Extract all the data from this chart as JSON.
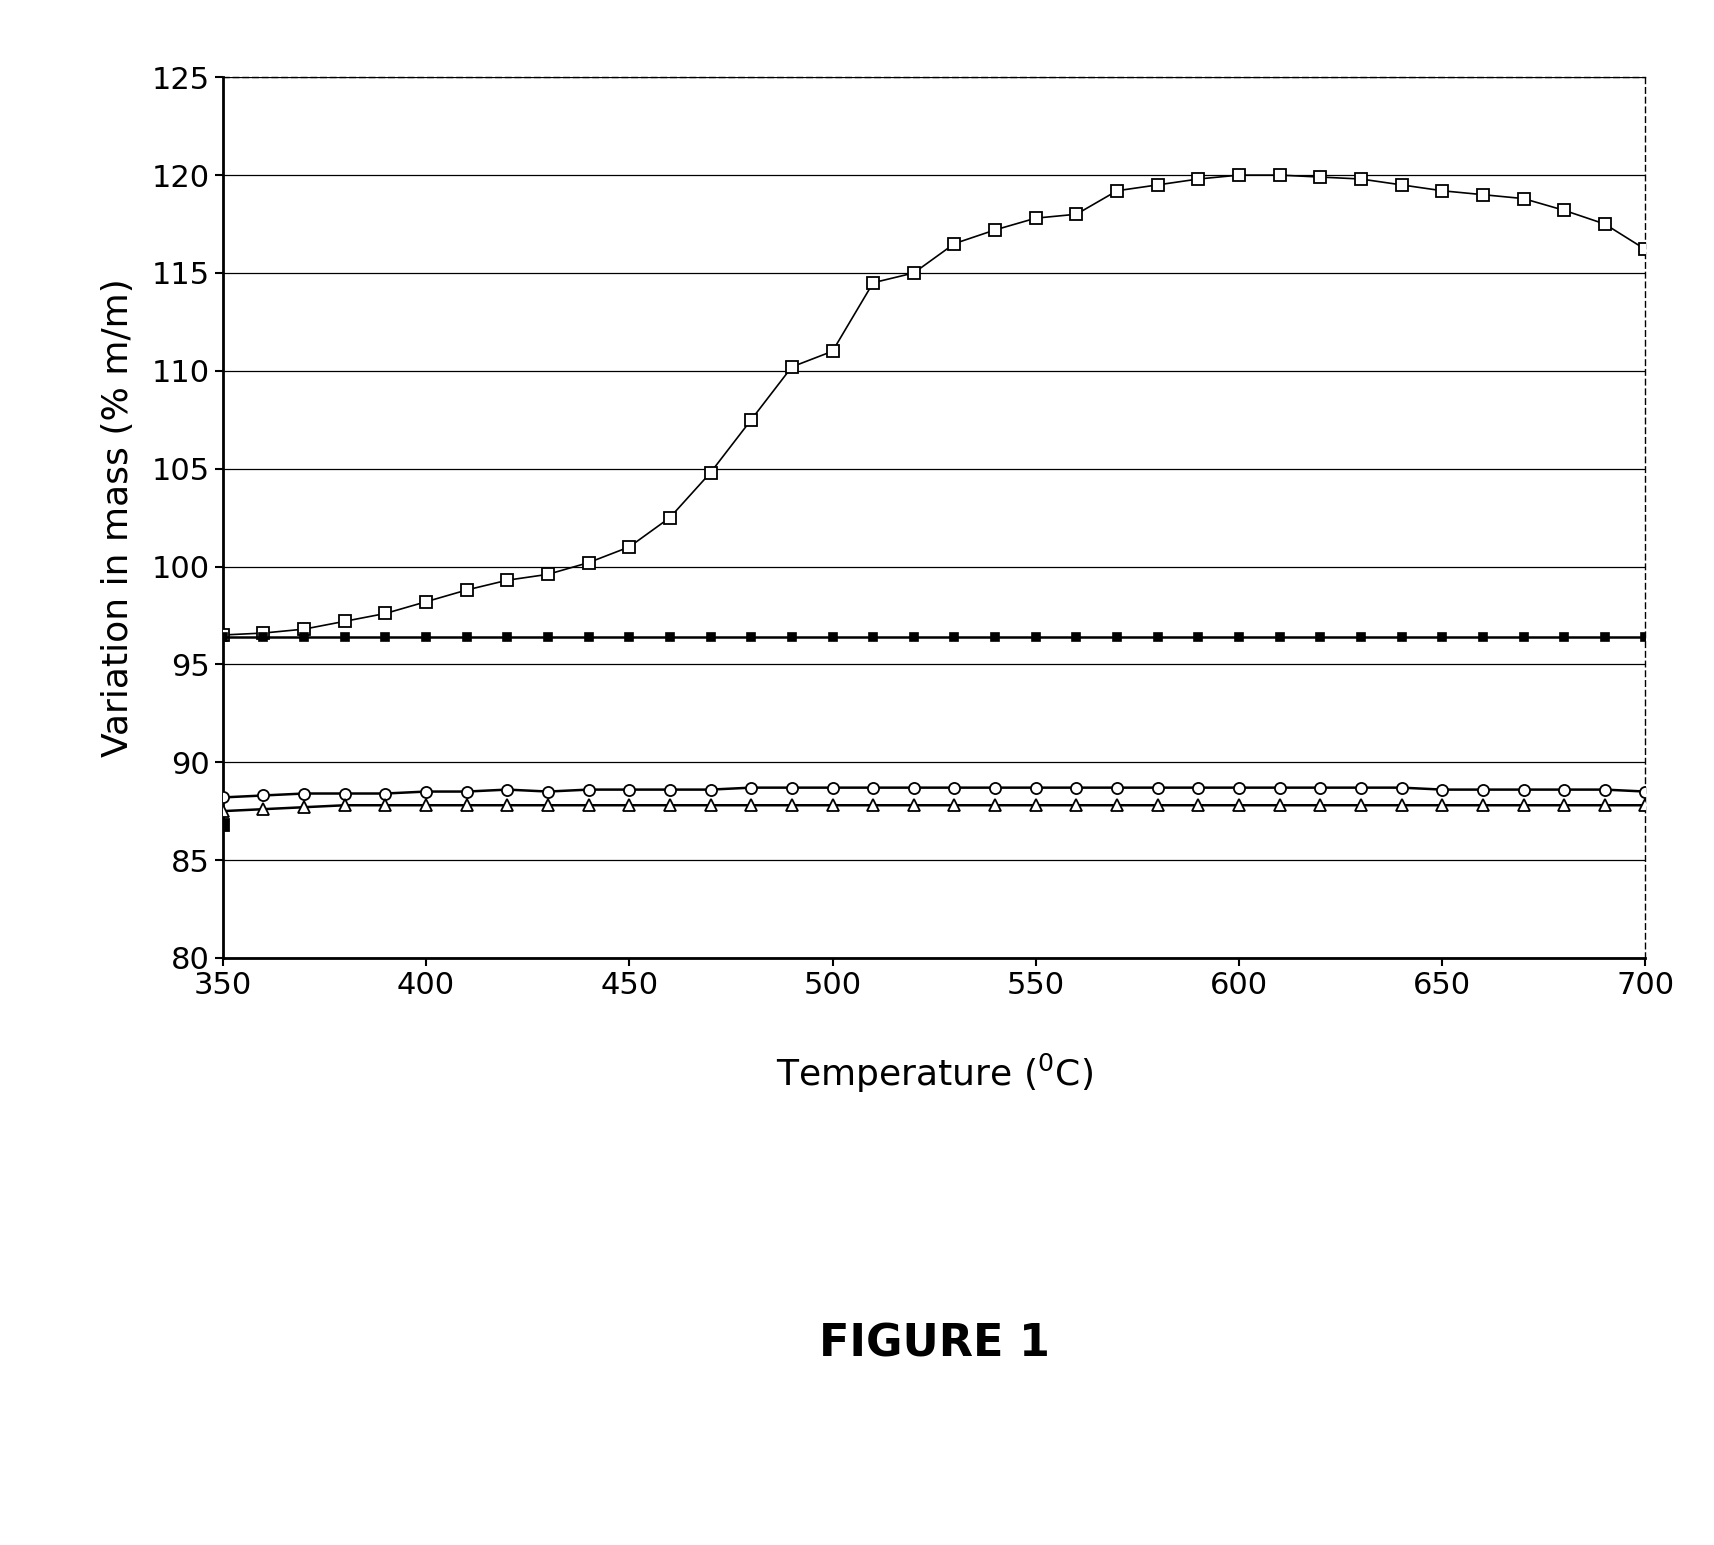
{
  "title": "FIGURE 1",
  "ylabel": "Variation in mass (% m/m)",
  "xlim": [
    350,
    700
  ],
  "ylim": [
    80,
    125
  ],
  "xticks": [
    350,
    400,
    450,
    500,
    550,
    600,
    650,
    700
  ],
  "yticks": [
    80,
    85,
    90,
    95,
    100,
    105,
    110,
    115,
    120,
    125
  ],
  "series_open_square": {
    "x": [
      350,
      360,
      370,
      380,
      390,
      400,
      410,
      420,
      430,
      440,
      450,
      460,
      470,
      480,
      490,
      500,
      510,
      520,
      530,
      540,
      550,
      560,
      570,
      580,
      590,
      600,
      610,
      620,
      630,
      640,
      650,
      660,
      670,
      680,
      690,
      700
    ],
    "y": [
      96.5,
      96.6,
      96.8,
      97.2,
      97.6,
      98.2,
      98.8,
      99.3,
      99.6,
      100.2,
      101.0,
      102.5,
      104.8,
      107.5,
      110.2,
      111.0,
      114.5,
      115.0,
      116.5,
      117.2,
      117.8,
      118.0,
      119.2,
      119.5,
      119.8,
      120.0,
      120.0,
      119.9,
      119.8,
      119.5,
      119.2,
      119.0,
      118.8,
      118.2,
      117.5,
      116.2
    ]
  },
  "series_filled_square": {
    "x": [
      350,
      360,
      370,
      380,
      390,
      400,
      410,
      420,
      430,
      440,
      450,
      460,
      470,
      480,
      490,
      500,
      510,
      520,
      530,
      540,
      550,
      560,
      570,
      580,
      590,
      600,
      610,
      620,
      630,
      640,
      650,
      660,
      670,
      680,
      690,
      700
    ],
    "y": [
      96.4,
      96.4,
      96.4,
      96.4,
      96.4,
      96.4,
      96.4,
      96.4,
      96.4,
      96.4,
      96.4,
      96.4,
      96.4,
      96.4,
      96.4,
      96.4,
      96.4,
      96.4,
      96.4,
      96.4,
      96.4,
      96.4,
      96.4,
      96.4,
      96.4,
      96.4,
      96.4,
      96.4,
      96.4,
      96.4,
      96.4,
      96.4,
      96.4,
      96.4,
      96.4,
      96.4
    ]
  },
  "series_open_circle": {
    "x": [
      350,
      360,
      370,
      380,
      390,
      400,
      410,
      420,
      430,
      440,
      450,
      460,
      470,
      480,
      490,
      500,
      510,
      520,
      530,
      540,
      550,
      560,
      570,
      580,
      590,
      600,
      610,
      620,
      630,
      640,
      650,
      660,
      670,
      680,
      690,
      700
    ],
    "y": [
      88.2,
      88.3,
      88.4,
      88.4,
      88.4,
      88.5,
      88.5,
      88.6,
      88.5,
      88.6,
      88.6,
      88.6,
      88.6,
      88.7,
      88.7,
      88.7,
      88.7,
      88.7,
      88.7,
      88.7,
      88.7,
      88.7,
      88.7,
      88.7,
      88.7,
      88.7,
      88.7,
      88.7,
      88.7,
      88.7,
      88.6,
      88.6,
      88.6,
      88.6,
      88.6,
      88.5
    ]
  },
  "series_open_triangle": {
    "x": [
      350,
      360,
      370,
      380,
      390,
      400,
      410,
      420,
      430,
      440,
      450,
      460,
      470,
      480,
      490,
      500,
      510,
      520,
      530,
      540,
      550,
      560,
      570,
      580,
      590,
      600,
      610,
      620,
      630,
      640,
      650,
      660,
      670,
      680,
      690,
      700
    ],
    "y": [
      87.5,
      87.6,
      87.7,
      87.8,
      87.8,
      87.8,
      87.8,
      87.8,
      87.8,
      87.8,
      87.8,
      87.8,
      87.8,
      87.8,
      87.8,
      87.8,
      87.8,
      87.8,
      87.8,
      87.8,
      87.8,
      87.8,
      87.8,
      87.8,
      87.8,
      87.8,
      87.8,
      87.8,
      87.8,
      87.8,
      87.8,
      87.8,
      87.8,
      87.8,
      87.8,
      87.8
    ]
  },
  "series_filled_square_low_x": [
    350
  ],
  "series_filled_square_low_y": [
    86.8
  ],
  "background_color": "#ffffff",
  "title_fontsize": 32,
  "axis_label_fontsize": 26,
  "tick_fontsize": 22
}
